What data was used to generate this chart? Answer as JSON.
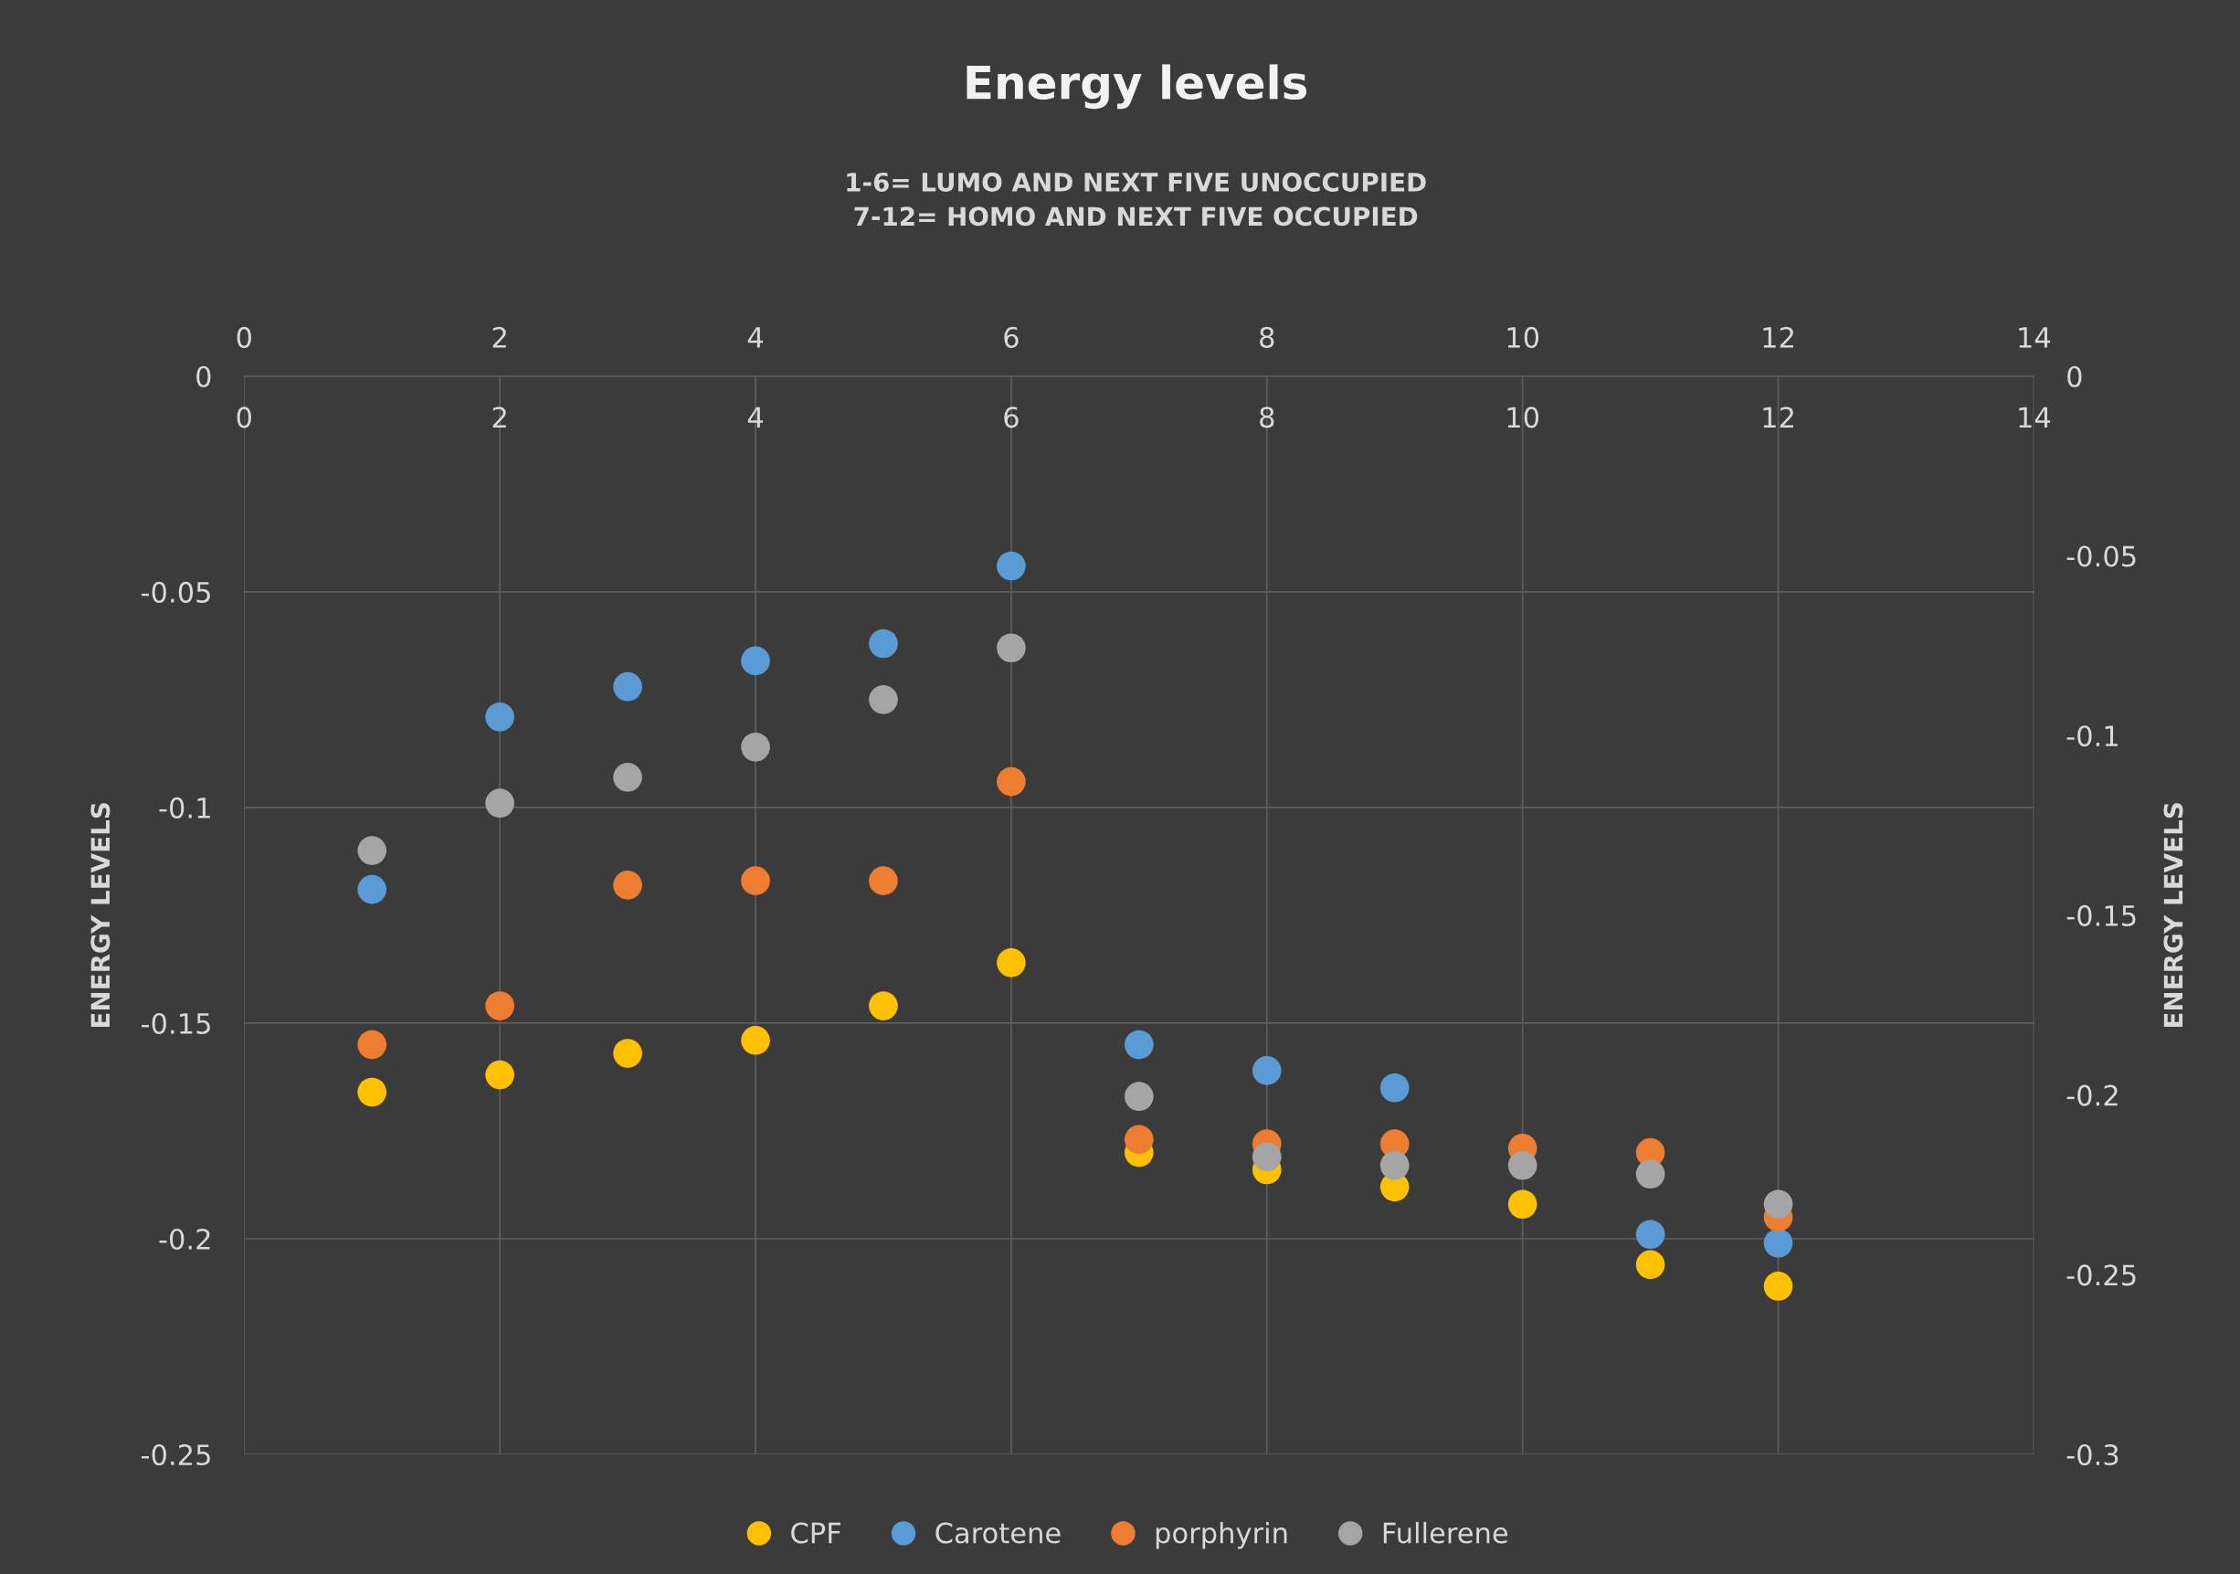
{
  "chart_data": {
    "type": "scatter",
    "title": "Energy levels",
    "subtitle": "1-6= LUMO AND NEXT FIVE UNOCCUPIED\n7-12= HOMO AND NEXT FIVE OCCUPIED",
    "ylabel": "ENERGY LEVELS",
    "y2label": "ENERGY LEVELS",
    "x": [
      1,
      2,
      3,
      4,
      5,
      6,
      7,
      8,
      9,
      10,
      11,
      12
    ],
    "series": [
      {
        "name": "CPF",
        "color": "#ffc000",
        "values": [
          -0.166,
          -0.162,
          -0.157,
          -0.154,
          -0.146,
          -0.136,
          -0.18,
          -0.184,
          -0.188,
          -0.192,
          -0.206,
          -0.211
        ]
      },
      {
        "name": "Carotene",
        "color": "#5b9bd5",
        "values": [
          -0.119,
          -0.079,
          -0.072,
          -0.066,
          -0.062,
          -0.044,
          -0.155,
          -0.161,
          -0.165,
          null,
          -0.199,
          -0.201
        ]
      },
      {
        "name": "porphyrin",
        "color": "#ed7d31",
        "values": [
          -0.155,
          -0.146,
          -0.118,
          -0.117,
          -0.117,
          -0.094,
          -0.177,
          -0.178,
          -0.178,
          -0.179,
          -0.18,
          -0.195
        ]
      },
      {
        "name": "Fullerene",
        "color": "#a5a5a5",
        "values": [
          -0.11,
          -0.099,
          -0.093,
          -0.086,
          -0.075,
          -0.063,
          -0.167,
          -0.181,
          -0.183,
          -0.183,
          -0.185,
          -0.192
        ]
      }
    ],
    "xlim": [
      0,
      14
    ],
    "xticks": [
      0,
      2,
      4,
      6,
      8,
      10,
      12,
      14
    ],
    "x2lim": [
      0,
      14
    ],
    "x2ticks": [
      0,
      2,
      4,
      6,
      8,
      10,
      12,
      14
    ],
    "ylim": [
      -0.25,
      0
    ],
    "yticks": [
      -0.25,
      -0.2,
      -0.15,
      -0.1,
      -0.05,
      0
    ],
    "y2lim": [
      -0.3,
      0
    ],
    "y2ticks": [
      -0.3,
      -0.25,
      -0.2,
      -0.15,
      -0.1,
      -0.05,
      0
    ],
    "grid": true,
    "legend": "bottom",
    "marker": "circle"
  }
}
